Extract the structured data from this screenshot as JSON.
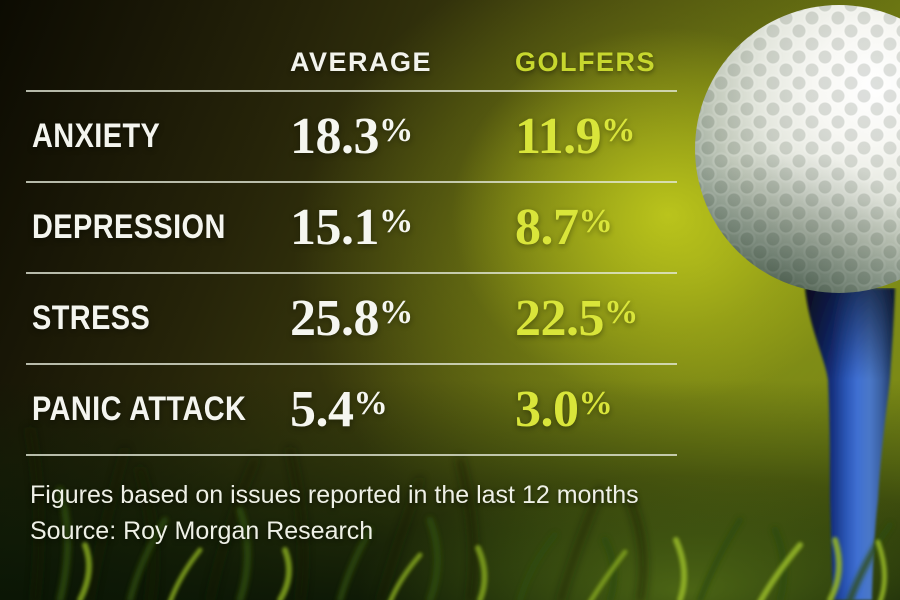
{
  "table": {
    "columns": {
      "average": "AVERAGE",
      "golfers": "GOLFERS"
    },
    "rows": [
      {
        "label": "ANXIETY",
        "average": "18.3%",
        "golfers": "11.9%"
      },
      {
        "label": "DEPRESSION",
        "average": "15.1%",
        "golfers": "8.7%"
      },
      {
        "label": "STRESS",
        "average": "25.8%",
        "golfers": "22.5%"
      },
      {
        "label": "PANIC ATTACK",
        "average": "5.4%",
        "golfers": "3.0%"
      }
    ]
  },
  "footer": {
    "note": "Figures based on issues reported in the last 12 months",
    "source": "Source: Roy Morgan Research"
  },
  "colors": {
    "average_text": "#f5f6f0",
    "golfers_text": "#d9e53a",
    "golfers_header": "#c7d72e",
    "divider": "rgba(228,233,216,0.78)",
    "background_bright": "#8a9a17",
    "background_dark": "#0c0b02",
    "tee_blue": "#3f6fd2"
  },
  "chart_data": {
    "type": "table",
    "title": "",
    "categories": [
      "Anxiety",
      "Depression",
      "Stress",
      "Panic attack"
    ],
    "series": [
      {
        "name": "Average",
        "values": [
          18.3,
          15.1,
          25.8,
          5.4
        ]
      },
      {
        "name": "Golfers",
        "values": [
          11.9,
          8.7,
          22.5,
          3.0
        ]
      }
    ],
    "unit": "%",
    "note": "Figures based on issues reported in the last 12 months",
    "source": "Roy Morgan Research"
  }
}
